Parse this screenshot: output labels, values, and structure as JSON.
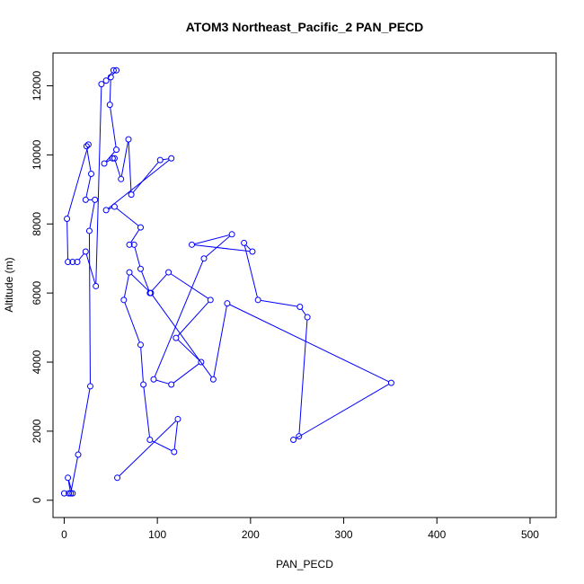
{
  "chart_data": {
    "type": "scatter",
    "title": "ATOM3 Northeast_Pacific_2 PAN_PECD",
    "xlabel": "PAN_PECD",
    "ylabel": "Altitude (m)",
    "xlim": [
      -12,
      528
    ],
    "ylim": [
      -500,
      12950
    ],
    "xticks": [
      0,
      100,
      200,
      300,
      400,
      500
    ],
    "yticks": [
      0,
      2000,
      4000,
      6000,
      8000,
      10000,
      12000
    ],
    "grid": false,
    "color": "#0000ff",
    "marker": "open-circle",
    "connected": true,
    "series": [
      {
        "x": [
          0,
          5,
          9,
          4,
          7,
          15,
          28,
          27,
          33,
          23,
          29,
          24,
          26,
          3,
          4,
          9,
          14,
          23,
          34,
          40,
          45,
          53,
          56,
          50,
          49,
          56,
          43,
          52,
          54,
          61,
          69,
          72,
          103,
          115,
          45,
          54,
          82,
          70,
          75,
          82,
          92,
          112,
          157,
          120,
          147,
          115,
          96,
          150,
          180,
          137,
          202,
          193,
          208,
          253,
          261,
          252,
          246,
          351,
          175,
          160,
          93,
          70,
          64,
          82,
          85,
          92,
          118,
          122,
          57
        ],
        "y": [
          200,
          200,
          200,
          650,
          200,
          1320,
          3300,
          7800,
          8700,
          8700,
          9450,
          10250,
          10300,
          8150,
          6900,
          6900,
          6900,
          7200,
          6200,
          12050,
          12150,
          12450,
          12450,
          12250,
          11450,
          10150,
          9750,
          9900,
          9900,
          9300,
          10450,
          8850,
          9850,
          9900,
          8400,
          8500,
          7900,
          7400,
          7400,
          6700,
          6000,
          6600,
          5800,
          4700,
          4000,
          3350,
          3500,
          7000,
          7700,
          7400,
          7200,
          7450,
          5800,
          5600,
          5300,
          1850,
          1750,
          3400,
          5700,
          3500,
          6000,
          6600,
          5800,
          4500,
          3350,
          1750,
          1400,
          2350,
          650
        ]
      }
    ]
  }
}
